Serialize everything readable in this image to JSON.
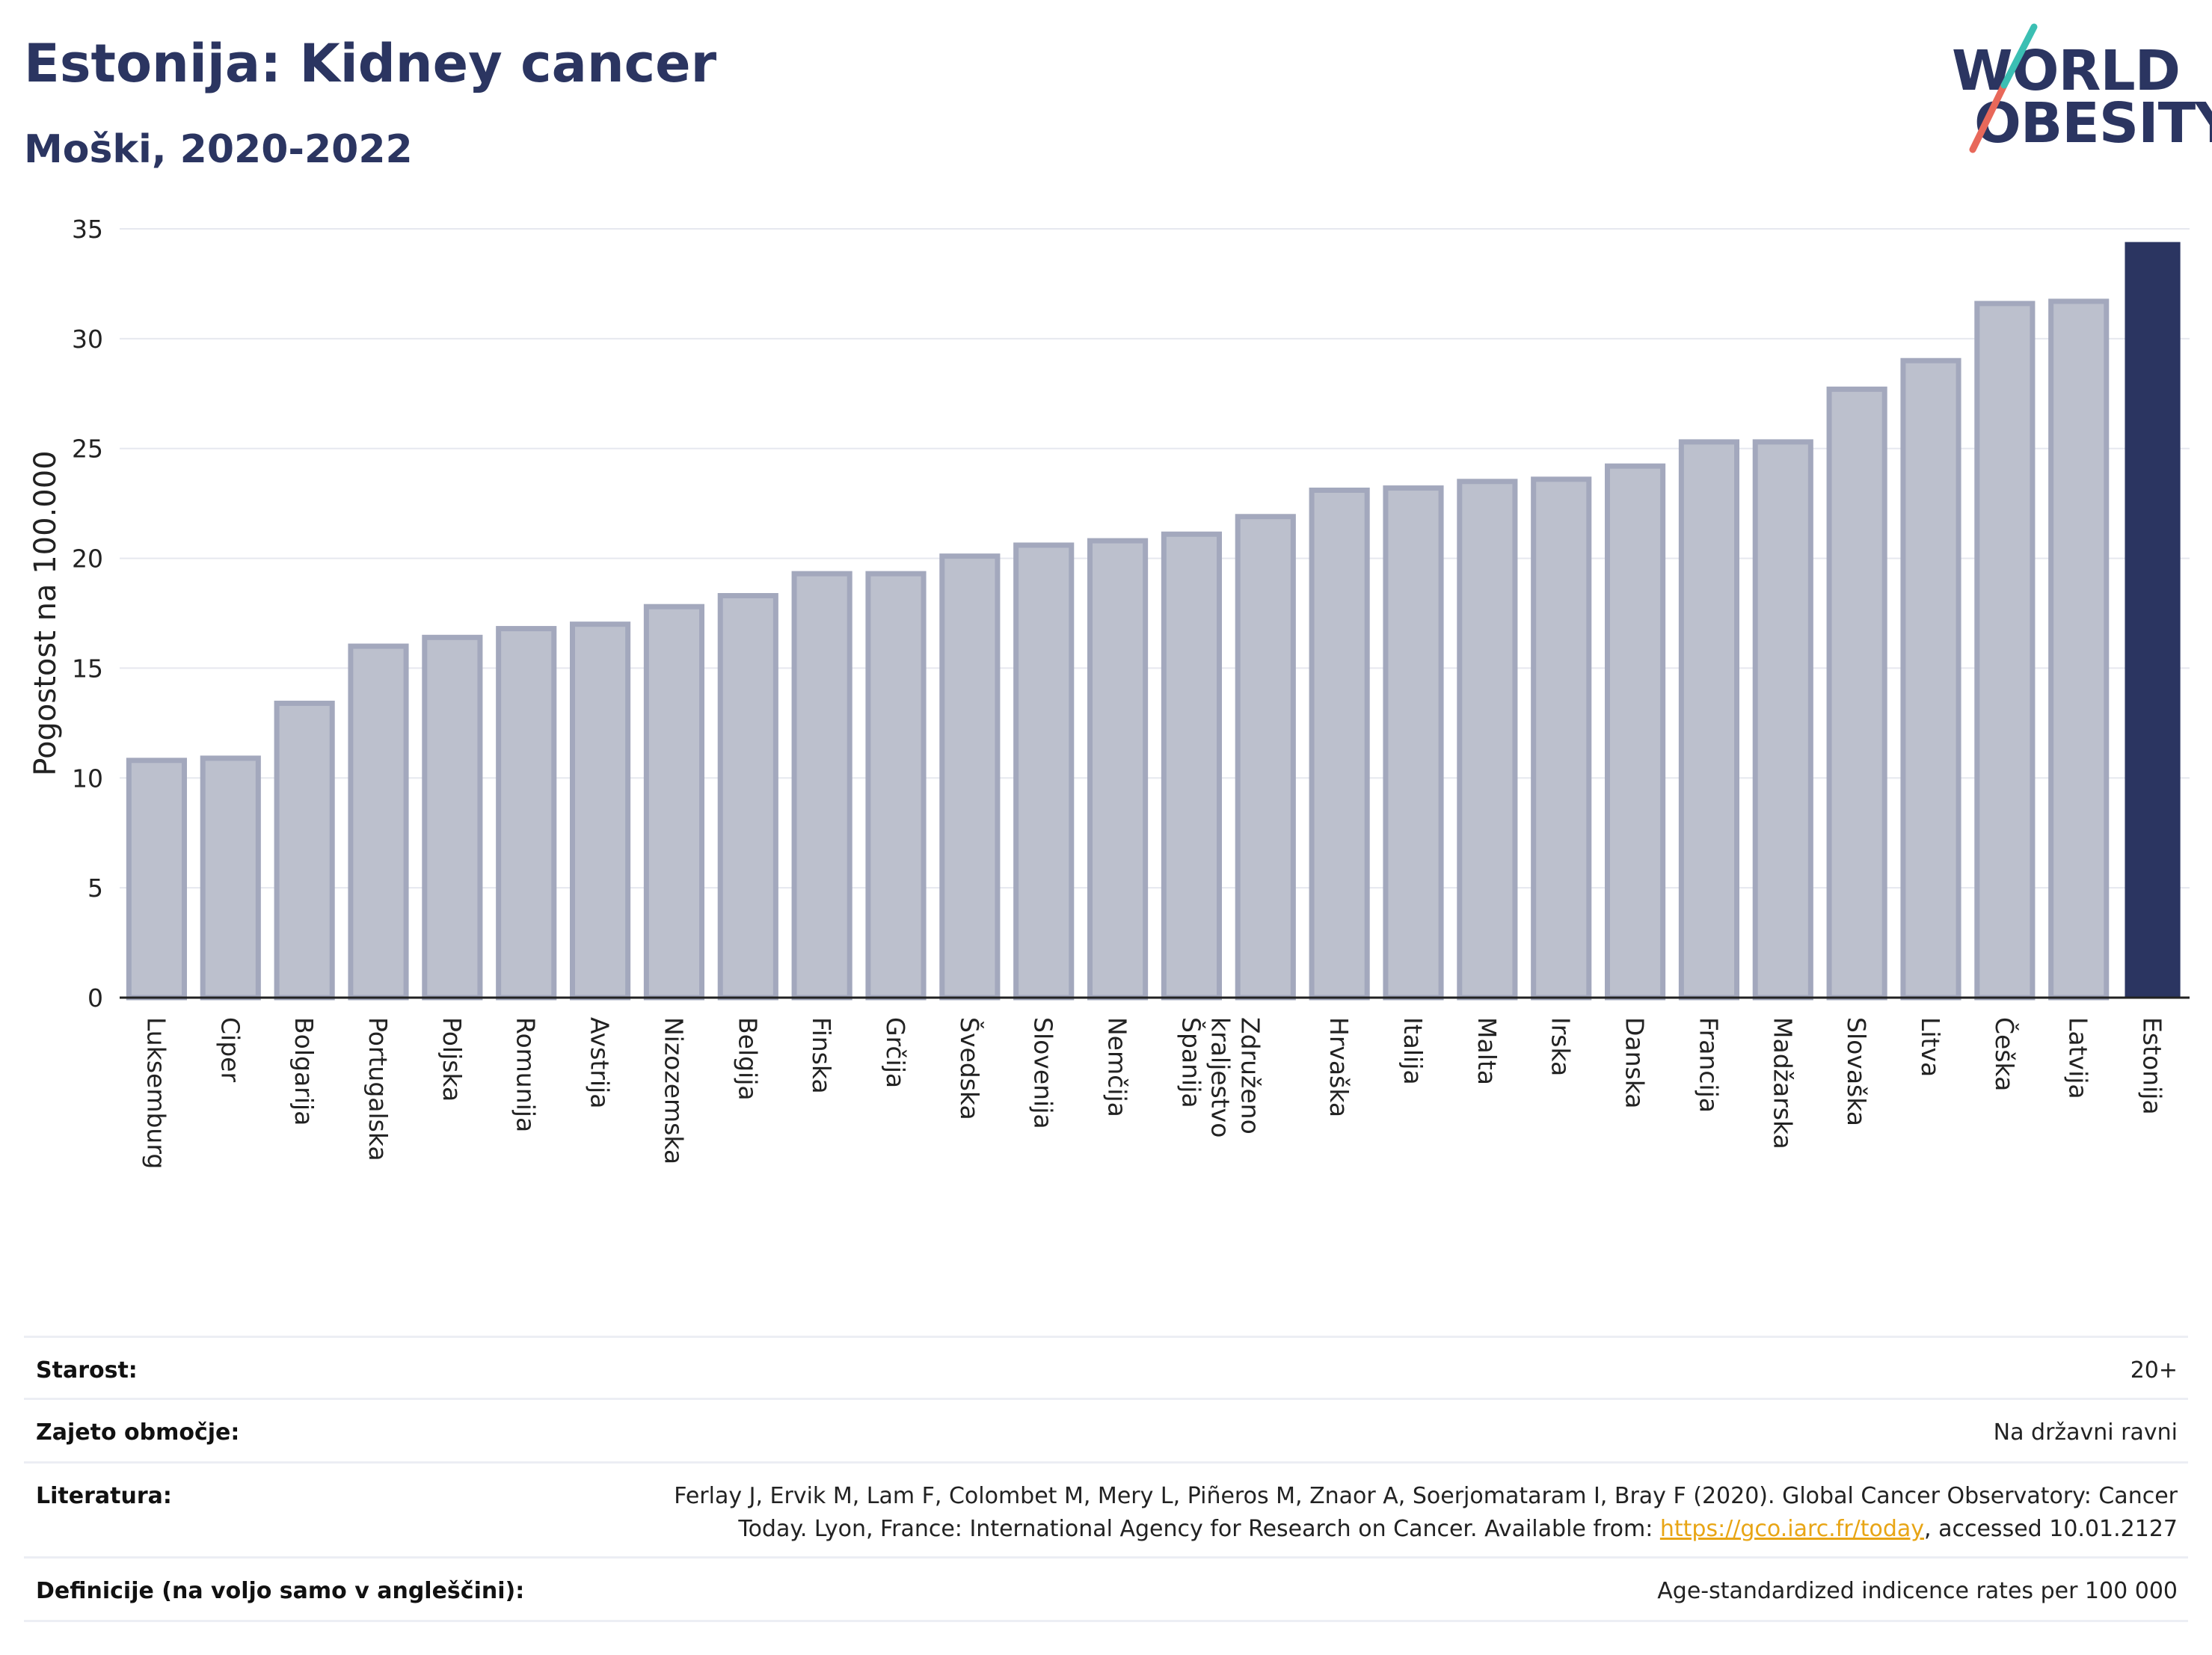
{
  "header": {
    "title": "Estonija: Kidney cancer",
    "subtitle": "Moški, 2020-2022"
  },
  "logo": {
    "line1": "WORLD",
    "line2": "OBESITY"
  },
  "chart_data": {
    "type": "bar",
    "ylabel": "Pogostost na 100.000",
    "xlabel": "",
    "ylim": [
      0,
      35
    ],
    "yticks": [
      0,
      5,
      10,
      15,
      20,
      25,
      30,
      35
    ],
    "grid": true,
    "categories": [
      "Luksemburg",
      "Ciper",
      "Bolgarija",
      "Portugalska",
      "Poljska",
      "Romunija",
      "Avstrija",
      "Nizozemska",
      "Belgija",
      "Finska",
      "Grčija",
      "Švedska",
      "Slovenija",
      "Nemčija",
      "Španija",
      "Združeno kraljestvo",
      "Hrvaška",
      "Italija",
      "Malta",
      "Irska",
      "Danska",
      "Francija",
      "Madžarska",
      "Slovaška",
      "Litva",
      "Češka",
      "Latvija",
      "Estonija"
    ],
    "values": [
      10.8,
      10.9,
      13.4,
      16.0,
      16.4,
      16.8,
      17.0,
      17.8,
      18.3,
      19.3,
      19.3,
      20.1,
      20.6,
      20.8,
      21.1,
      21.9,
      23.1,
      23.2,
      23.5,
      23.6,
      24.2,
      25.3,
      25.3,
      27.7,
      29.0,
      31.6,
      31.7,
      34.4
    ],
    "highlight": "Estonija",
    "colors": {
      "bar": "#bcc0cd",
      "bar_edge": "#a3a8bd",
      "highlight": "#2b3561",
      "grid": "#e6e8ef",
      "axis": "#222222"
    }
  },
  "info": {
    "rows": [
      {
        "label": "Starost:",
        "value": "20+"
      },
      {
        "label": "Zajeto območje:",
        "value": "Na državni ravni"
      },
      {
        "label": "Literatura:",
        "value_line1": "Ferlay J, Ervik M, Lam F, Colombet M, Mery L, Piñeros M, Znaor A, Soerjomataram I, Bray F (2020). Global Cancer Observatory: Cancer",
        "value_line2_pre": "Today. Lyon, France: International Agency for Research on Cancer. Available from: ",
        "link": "https://gco.iarc.fr/today",
        "value_line2_post": ", accessed 10.01.2127"
      },
      {
        "label": "Definicije (na voljo samo v angleščini):",
        "value": "Age-standardized indicence rates per 100 000"
      }
    ],
    "link_color": "#e8a515"
  }
}
